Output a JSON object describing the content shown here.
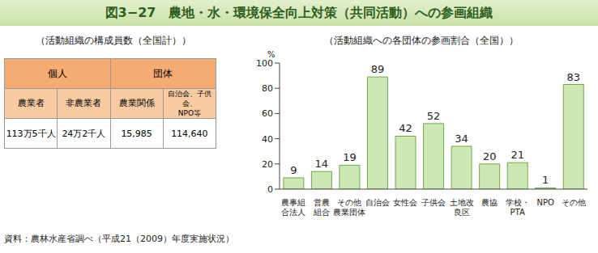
{
  "header": {
    "title": "図3−27　農地・水・環境保全向上対策（共同活動）への参画組織"
  },
  "table": {
    "title": "（活動組織の構成員数（全国計））",
    "groups": [
      {
        "label": "個人",
        "columns": [
          "農業者",
          "非農業者"
        ]
      },
      {
        "label": "団体",
        "columns": [
          "農業関係",
          "自治会、子供会、\nNPO等"
        ]
      }
    ],
    "rows": [
      [
        "113万5千人",
        "24万2千人",
        "15,985",
        "114,640"
      ]
    ]
  },
  "chart_data": {
    "type": "bar",
    "title": "（活動組織への各団体の参画割合（全国））",
    "y_label": "%",
    "categories": [
      "農事組\n合法人",
      "営農\n組合",
      "その他\n農業団体",
      "自治会",
      "女性会",
      "子供会",
      "土地改\n良区",
      "農協",
      "学校・\nPTA",
      "NPO",
      "その他"
    ],
    "values": [
      9,
      14,
      19,
      89,
      42,
      52,
      34,
      20,
      21,
      1,
      83
    ],
    "color": "#cde8b5",
    "ylim": [
      0,
      100
    ],
    "yticks": [
      0,
      20,
      40,
      60,
      80,
      100
    ],
    "data_labels": true,
    "grid": false
  },
  "source": "資料：農林水産省調べ（平成21（2009）年度実施状況）"
}
